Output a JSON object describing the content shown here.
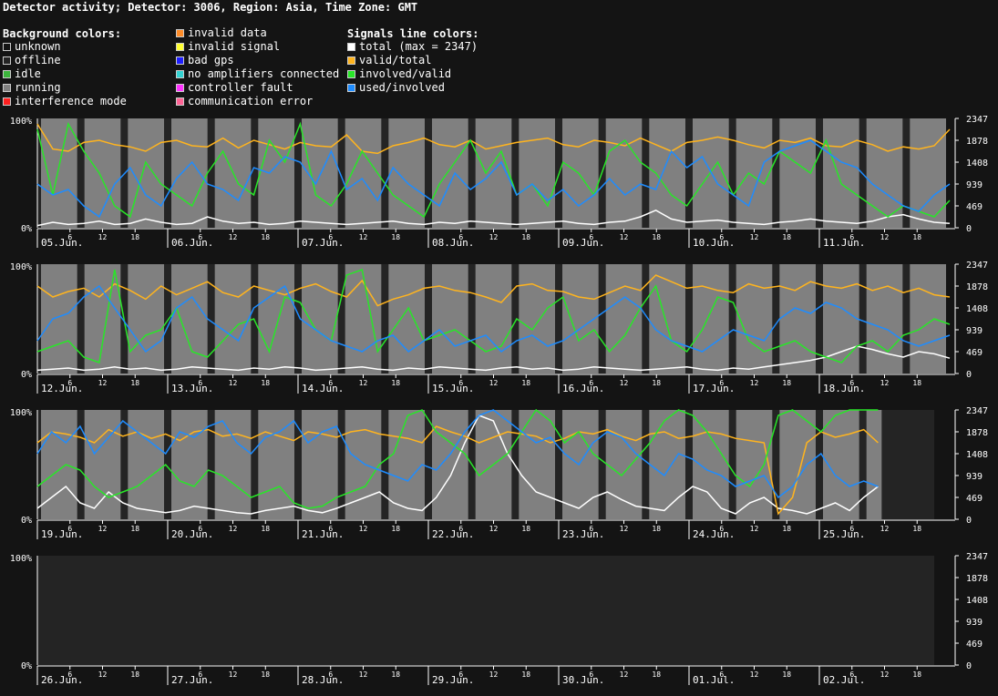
{
  "title": "Detector activity; Detector: 3006, Region: Asia, Time Zone: GMT",
  "legend": {
    "background_heading": "Background colors:",
    "background_left": [
      {
        "label": "unknown",
        "color": "#141414"
      },
      {
        "label": "offline",
        "color": "#242424"
      },
      {
        "label": "idle",
        "color": "#3cb43c"
      },
      {
        "label": "running",
        "color": "#808080"
      },
      {
        "label": "interference mode",
        "color": "#ff2020"
      }
    ],
    "background_right": [
      {
        "label": "invalid data",
        "color": "#ff8c28"
      },
      {
        "label": "invalid signal",
        "color": "#ffff32"
      },
      {
        "label": "bad gps",
        "color": "#1e1eff"
      },
      {
        "label": "no amplifiers connected",
        "color": "#32d2d2"
      },
      {
        "label": "controller fault",
        "color": "#ff32ff"
      },
      {
        "label": "communication error",
        "color": "#ff6496"
      }
    ],
    "signals_heading": "Signals line colors:",
    "signals": [
      {
        "label": "total (max = 2347)",
        "color": "#ffffff"
      },
      {
        "label": "valid/total",
        "color": "#ffb41e"
      },
      {
        "label": "involved/valid",
        "color": "#28e628"
      },
      {
        "label": "used/involved",
        "color": "#1e8cff"
      }
    ]
  },
  "chart_data": {
    "type": "line",
    "y_left_labels": [
      "100%",
      "0%"
    ],
    "y_right_ticks": [
      "2347",
      "1878",
      "1408",
      "939",
      "469",
      "0"
    ],
    "y_right_max": 2347,
    "hour_ticks": [
      "6",
      "12",
      "18"
    ],
    "panels": [
      {
        "days": [
          "05.Jun.",
          "06.Jun.",
          "07.Jun.",
          "08.Jun.",
          "09.Jun.",
          "10.Jun.",
          "11.Jun."
        ],
        "data_end_day": 7,
        "series": [
          {
            "name": "total (max = 2347)",
            "values": [
              2,
              5,
              3,
              4,
              6,
              3,
              4,
              8,
              5,
              3,
              4,
              10,
              6,
              4,
              5,
              3,
              4,
              6,
              5,
              4,
              3,
              4,
              5,
              6,
              4,
              3,
              5,
              4,
              6,
              5,
              4,
              3,
              4,
              5,
              6,
              4,
              3,
              5,
              6,
              10,
              16,
              8,
              5,
              6,
              7,
              5,
              4,
              3,
              5,
              6,
              8,
              6,
              5,
              4,
              6,
              10,
              12,
              8,
              5,
              4
            ]
          },
          {
            "name": "valid/total",
            "values": [
              95,
              72,
              70,
              78,
              80,
              76,
              74,
              70,
              78,
              80,
              75,
              74,
              82,
              73,
              80,
              76,
              72,
              78,
              75,
              74,
              85,
              70,
              68,
              75,
              78,
              82,
              76,
              74,
              80,
              72,
              75,
              78,
              80,
              82,
              76,
              74,
              80,
              78,
              75,
              82,
              76,
              70,
              78,
              80,
              83,
              80,
              76,
              73,
              80,
              78,
              82,
              75,
              74,
              80,
              76,
              70,
              74,
              72,
              75,
              90
            ]
          },
          {
            "name": "involved/valid",
            "values": [
              90,
              30,
              95,
              70,
              50,
              20,
              10,
              60,
              40,
              30,
              20,
              50,
              70,
              40,
              30,
              80,
              60,
              95,
              30,
              20,
              40,
              70,
              50,
              30,
              20,
              10,
              40,
              60,
              80,
              50,
              70,
              30,
              40,
              20,
              60,
              50,
              30,
              70,
              80,
              60,
              50,
              30,
              20,
              40,
              60,
              30,
              50,
              40,
              70,
              60,
              50,
              80,
              40,
              30,
              20,
              10,
              20,
              15,
              10,
              25
            ]
          },
          {
            "name": "used/involved",
            "values": [
              40,
              30,
              35,
              20,
              10,
              40,
              55,
              30,
              20,
              45,
              60,
              40,
              35,
              25,
              55,
              50,
              65,
              60,
              40,
              70,
              35,
              45,
              25,
              55,
              40,
              30,
              20,
              50,
              35,
              45,
              60,
              30,
              40,
              25,
              35,
              20,
              30,
              45,
              30,
              40,
              35,
              70,
              55,
              65,
              40,
              30,
              20,
              60,
              70,
              75,
              80,
              70,
              60,
              55,
              40,
              30,
              20,
              15,
              30,
              40
            ]
          }
        ]
      },
      {
        "days": [
          "12.Jun.",
          "13.Jun.",
          "14.Jun.",
          "15.Jun.",
          "16.Jun.",
          "17.Jun.",
          "18.Jun."
        ],
        "data_end_day": 7,
        "series": [
          {
            "name": "total (max = 2347)",
            "values": [
              3,
              4,
              5,
              3,
              4,
              6,
              4,
              5,
              3,
              4,
              6,
              5,
              4,
              3,
              5,
              4,
              6,
              5,
              3,
              4,
              5,
              6,
              4,
              3,
              5,
              4,
              6,
              5,
              4,
              3,
              5,
              6,
              4,
              5,
              3,
              4,
              6,
              5,
              4,
              3,
              4,
              5,
              6,
              4,
              3,
              5,
              4,
              6,
              8,
              10,
              12,
              15,
              20,
              25,
              22,
              18,
              15,
              20,
              18,
              14
            ]
          },
          {
            "name": "valid/total",
            "values": [
              80,
              70,
              75,
              78,
              70,
              82,
              76,
              68,
              80,
              72,
              78,
              84,
              74,
              70,
              80,
              76,
              72,
              78,
              82,
              75,
              70,
              85,
              62,
              68,
              72,
              78,
              80,
              76,
              74,
              70,
              65,
              80,
              82,
              76,
              75,
              70,
              68,
              74,
              80,
              76,
              90,
              84,
              78,
              80,
              76,
              74,
              82,
              78,
              80,
              76,
              84,
              80,
              78,
              82,
              76,
              80,
              74,
              78,
              72,
              70
            ]
          },
          {
            "name": "involved/valid",
            "values": [
              20,
              25,
              30,
              15,
              10,
              95,
              20,
              35,
              40,
              60,
              20,
              15,
              30,
              45,
              50,
              20,
              70,
              65,
              40,
              30,
              90,
              95,
              20,
              40,
              60,
              30,
              35,
              40,
              30,
              20,
              25,
              50,
              40,
              60,
              70,
              30,
              40,
              20,
              35,
              60,
              80,
              30,
              20,
              40,
              70,
              65,
              30,
              20,
              25,
              30,
              20,
              15,
              10,
              25,
              30,
              20,
              35,
              40,
              50,
              45
            ]
          },
          {
            "name": "used/involved",
            "values": [
              30,
              50,
              55,
              70,
              80,
              60,
              40,
              20,
              30,
              60,
              70,
              50,
              40,
              30,
              60,
              70,
              80,
              50,
              40,
              30,
              25,
              20,
              30,
              35,
              20,
              30,
              40,
              25,
              30,
              35,
              20,
              30,
              35,
              25,
              30,
              40,
              50,
              60,
              70,
              60,
              40,
              30,
              25,
              20,
              30,
              40,
              35,
              30,
              50,
              60,
              55,
              65,
              60,
              50,
              45,
              40,
              30,
              25,
              30,
              35
            ]
          }
        ]
      },
      {
        "days": [
          "19.Jun.",
          "20.Jun.",
          "21.Jun.",
          "22.Jun.",
          "23.Jun.",
          "24.Jun.",
          "25.Jun."
        ],
        "data_end_day": 6.45,
        "series": [
          {
            "name": "total (max = 2347)",
            "values": [
              10,
              20,
              30,
              15,
              10,
              25,
              15,
              10,
              8,
              6,
              8,
              12,
              10,
              8,
              6,
              5,
              8,
              10,
              12,
              8,
              6,
              10,
              15,
              20,
              25,
              15,
              10,
              8,
              20,
              40,
              70,
              95,
              90,
              60,
              40,
              25,
              20,
              15,
              10,
              20,
              25,
              18,
              12,
              10,
              8,
              20,
              30,
              25,
              10,
              5,
              15,
              20,
              10,
              8,
              5,
              10,
              15,
              8,
              20,
              30
            ]
          },
          {
            "name": "valid/total",
            "values": [
              70,
              80,
              78,
              75,
              70,
              82,
              76,
              80,
              74,
              78,
              72,
              80,
              82,
              76,
              78,
              74,
              80,
              76,
              72,
              80,
              78,
              75,
              80,
              82,
              78,
              76,
              74,
              70,
              85,
              80,
              76,
              70,
              75,
              80,
              78,
              76,
              70,
              74,
              80,
              78,
              82,
              76,
              72,
              78,
              80,
              74,
              76,
              80,
              78,
              74,
              72,
              70,
              5,
              20,
              70,
              80,
              75,
              78,
              82,
              70
            ]
          },
          {
            "name": "involved/valid",
            "values": [
              30,
              40,
              50,
              45,
              30,
              20,
              25,
              30,
              40,
              50,
              35,
              30,
              45,
              40,
              30,
              20,
              25,
              30,
              15,
              10,
              12,
              20,
              25,
              30,
              50,
              60,
              95,
              100,
              80,
              70,
              60,
              40,
              50,
              60,
              80,
              100,
              90,
              70,
              80,
              60,
              50,
              40,
              55,
              70,
              90,
              100,
              95,
              80,
              60,
              40,
              30,
              50,
              95,
              100,
              90,
              80,
              95,
              100,
              100,
              100
            ]
          },
          {
            "name": "used/involved",
            "values": [
              60,
              80,
              70,
              85,
              60,
              75,
              90,
              80,
              70,
              60,
              80,
              75,
              85,
              90,
              70,
              60,
              75,
              80,
              90,
              70,
              80,
              85,
              60,
              50,
              45,
              40,
              35,
              50,
              45,
              60,
              80,
              95,
              100,
              90,
              80,
              70,
              75,
              60,
              50,
              70,
              80,
              75,
              60,
              50,
              40,
              60,
              55,
              45,
              40,
              30,
              35,
              40,
              20,
              30,
              50,
              60,
              40,
              30,
              35,
              30
            ]
          }
        ]
      },
      {
        "days": [
          "26.Jun.",
          "27.Jun.",
          "28.Jun.",
          "29.Jun.",
          "30.Jun.",
          "01.Jul.",
          "02.Jul."
        ],
        "data_end_day": 0,
        "series": []
      }
    ]
  }
}
